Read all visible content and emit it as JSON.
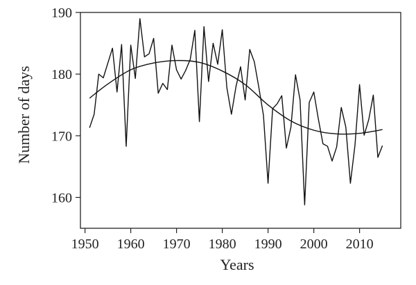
{
  "chart_data": {
    "type": "line",
    "title": "",
    "xlabel": "Years",
    "ylabel": "Number of days",
    "xlim": [
      1949,
      2019
    ],
    "ylim": [
      155,
      190
    ],
    "xticks": [
      1950,
      1960,
      1970,
      1980,
      1990,
      2000,
      2010
    ],
    "yticks": [
      160,
      170,
      180,
      190
    ],
    "grid": false,
    "series": [
      {
        "values": [
          [
            1951,
            171.3
          ],
          [
            1952,
            173.5
          ],
          [
            1953,
            180.0
          ],
          [
            1954,
            179.4
          ],
          [
            1955,
            181.8
          ],
          [
            1956,
            184.2
          ],
          [
            1957,
            177.1
          ],
          [
            1958,
            184.8
          ],
          [
            1959,
            168.3
          ],
          [
            1960,
            184.7
          ],
          [
            1961,
            179.3
          ],
          [
            1962,
            189.0
          ],
          [
            1963,
            182.8
          ],
          [
            1964,
            183.3
          ],
          [
            1965,
            185.8
          ],
          [
            1966,
            176.9
          ],
          [
            1967,
            178.5
          ],
          [
            1968,
            177.5
          ],
          [
            1969,
            184.7
          ],
          [
            1970,
            180.7
          ],
          [
            1971,
            179.2
          ],
          [
            1972,
            180.6
          ],
          [
            1973,
            182.4
          ],
          [
            1974,
            187.1
          ],
          [
            1975,
            172.3
          ],
          [
            1976,
            187.7
          ],
          [
            1977,
            178.8
          ],
          [
            1978,
            185.0
          ],
          [
            1979,
            181.6
          ],
          [
            1980,
            187.2
          ],
          [
            1981,
            177.8
          ],
          [
            1982,
            173.5
          ],
          [
            1983,
            178.0
          ],
          [
            1984,
            181.2
          ],
          [
            1985,
            175.8
          ],
          [
            1986,
            184.0
          ],
          [
            1987,
            182.0
          ],
          [
            1988,
            177.8
          ],
          [
            1989,
            173.3
          ],
          [
            1990,
            162.3
          ],
          [
            1991,
            174.4
          ],
          [
            1992,
            175.2
          ],
          [
            1993,
            176.5
          ],
          [
            1994,
            168.0
          ],
          [
            1995,
            171.4
          ],
          [
            1996,
            179.9
          ],
          [
            1997,
            175.8
          ],
          [
            1998,
            158.8
          ],
          [
            1999,
            175.4
          ],
          [
            2000,
            177.1
          ],
          [
            2001,
            172.7
          ],
          [
            2002,
            168.7
          ],
          [
            2003,
            168.3
          ],
          [
            2004,
            165.9
          ],
          [
            2005,
            168.2
          ],
          [
            2006,
            174.6
          ],
          [
            2007,
            171.4
          ],
          [
            2008,
            162.3
          ],
          [
            2009,
            168.5
          ],
          [
            2010,
            178.3
          ],
          [
            2011,
            170.1
          ],
          [
            2012,
            172.6
          ],
          [
            2013,
            176.6
          ],
          [
            2014,
            166.5
          ],
          [
            2015,
            168.4
          ]
        ]
      },
      {
        "values": [
          [
            1951,
            176.1
          ],
          [
            1955,
            178.4
          ],
          [
            1960,
            180.7
          ],
          [
            1965,
            181.8
          ],
          [
            1970,
            182.2
          ],
          [
            1975,
            181.9
          ],
          [
            1980,
            180.5
          ],
          [
            1985,
            178.3
          ],
          [
            1990,
            175.0
          ],
          [
            1995,
            172.4
          ],
          [
            2000,
            170.9
          ],
          [
            2005,
            170.3
          ],
          [
            2010,
            170.4
          ],
          [
            2015,
            171.0
          ]
        ]
      }
    ]
  }
}
